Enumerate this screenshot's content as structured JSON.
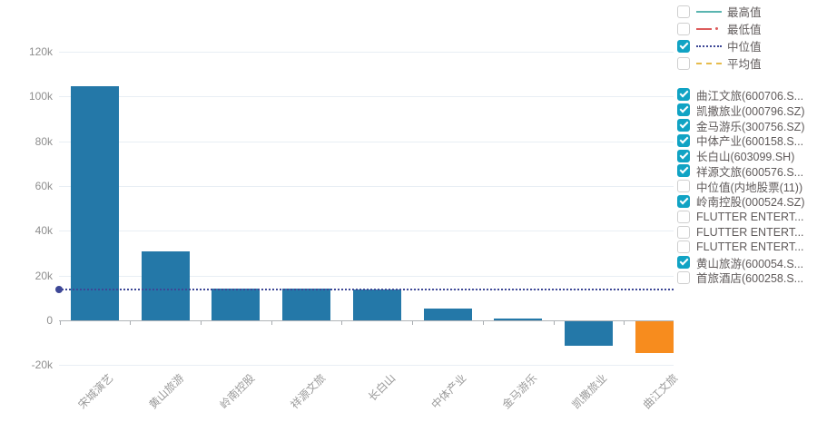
{
  "chart_data": {
    "type": "bar",
    "title": "",
    "categories": [
      "宋城演艺",
      "黄山旅游",
      "岭南控股",
      "祥源文旅",
      "长白山",
      "中体产业",
      "金马游乐",
      "凯撒旅业",
      "曲江文旅"
    ],
    "values": [
      104600,
      31000,
      14300,
      14000,
      13900,
      5100,
      800,
      -11000,
      -14000
    ],
    "median_value": 13800,
    "y_ticks": [
      "120k",
      "100k",
      "80k",
      "60k",
      "40k",
      "20k",
      "0",
      "-20k"
    ],
    "y_tick_values": [
      120000,
      100000,
      80000,
      60000,
      40000,
      20000,
      0,
      -20000
    ],
    "ylim": [
      -20000,
      130000
    ],
    "grid": true,
    "legend_position": "right",
    "bar_color_default": "#2478a8",
    "bar_color_highlight": "#f78c1e",
    "highlight_index": 8,
    "median_color": "#3d4796"
  },
  "legend": {
    "checkbox_color": "#11a3c4",
    "series": [
      {
        "label": "最高值",
        "checked": false,
        "line": "solid",
        "color": "#5ab5b0"
      },
      {
        "label": "最低值",
        "checked": false,
        "line": "dashdot",
        "color": "#dd5c5c"
      },
      {
        "label": "中位值",
        "checked": true,
        "line": "dotted",
        "color": "#3d4796"
      },
      {
        "label": "平均值",
        "checked": false,
        "line": "dashed",
        "color": "#e6bc4c"
      }
    ],
    "stocks": [
      {
        "label": "曲江文旅(600706.S...",
        "checked": true
      },
      {
        "label": "凯撒旅业(000796.SZ)",
        "checked": true
      },
      {
        "label": "金马游乐(300756.SZ)",
        "checked": true
      },
      {
        "label": "中体产业(600158.S...",
        "checked": true
      },
      {
        "label": "长白山(603099.SH)",
        "checked": true
      },
      {
        "label": "祥源文旅(600576.S...",
        "checked": true
      },
      {
        "label": "中位值(内地股票(11))",
        "checked": false
      },
      {
        "label": "岭南控股(000524.SZ)",
        "checked": true
      },
      {
        "label": "FLUTTER ENTERT...",
        "checked": false
      },
      {
        "label": "FLUTTER ENTERT...",
        "checked": false
      },
      {
        "label": "FLUTTER ENTERT...",
        "checked": false
      },
      {
        "label": "黄山旅游(600054.S...",
        "checked": true
      },
      {
        "label": "首旅酒店(600258.S...",
        "checked": false
      }
    ]
  }
}
